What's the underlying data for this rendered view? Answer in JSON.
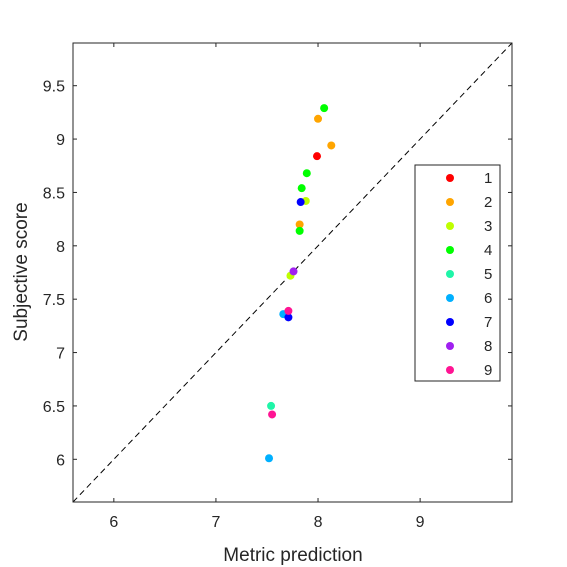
{
  "chart_data": {
    "type": "scatter",
    "title": "",
    "xlabel": "Metric prediction",
    "ylabel": "Subjective score",
    "xlim": [
      5.6,
      9.9
    ],
    "ylim": [
      5.6,
      9.9
    ],
    "xticks": [
      6,
      7,
      8,
      9
    ],
    "yticks": [
      6,
      6.5,
      7,
      7.5,
      8,
      8.5,
      9,
      9.5
    ],
    "xtick_labels": [
      "6",
      "7",
      "8",
      "9"
    ],
    "ytick_labels": [
      "6",
      "6.5",
      "7",
      "7.5",
      "8",
      "8.5",
      "9",
      "9.5"
    ],
    "grid": false,
    "legend_position": "right",
    "reference_line": {
      "style": "dashed",
      "color": "#000000",
      "from": [
        5.6,
        5.6
      ],
      "to": [
        9.9,
        9.9
      ]
    },
    "series": [
      {
        "name": "1",
        "color": "#ff0000",
        "points": [
          [
            7.99,
            8.84
          ]
        ]
      },
      {
        "name": "2",
        "color": "#ffa500",
        "points": [
          [
            8.0,
            9.19
          ],
          [
            8.13,
            8.94
          ],
          [
            7.82,
            8.2
          ]
        ]
      },
      {
        "name": "3",
        "color": "#bfff00",
        "points": [
          [
            7.88,
            8.42
          ],
          [
            7.73,
            7.72
          ]
        ]
      },
      {
        "name": "4",
        "color": "#00ff00",
        "points": [
          [
            8.06,
            9.29
          ],
          [
            7.89,
            8.68
          ],
          [
            7.84,
            8.54
          ],
          [
            7.82,
            8.14
          ]
        ]
      },
      {
        "name": "5",
        "color": "#1ff5a8",
        "points": [
          [
            7.54,
            6.5
          ]
        ]
      },
      {
        "name": "6",
        "color": "#00b0ff",
        "points": [
          [
            7.66,
            7.36
          ],
          [
            7.52,
            6.01
          ]
        ]
      },
      {
        "name": "7",
        "color": "#0000ff",
        "points": [
          [
            7.83,
            8.41
          ],
          [
            7.71,
            7.33
          ]
        ]
      },
      {
        "name": "8",
        "color": "#a020f0",
        "points": [
          [
            7.76,
            7.76
          ]
        ]
      },
      {
        "name": "9",
        "color": "#ff1493",
        "points": [
          [
            7.71,
            7.39
          ],
          [
            7.55,
            6.42
          ]
        ]
      }
    ]
  }
}
